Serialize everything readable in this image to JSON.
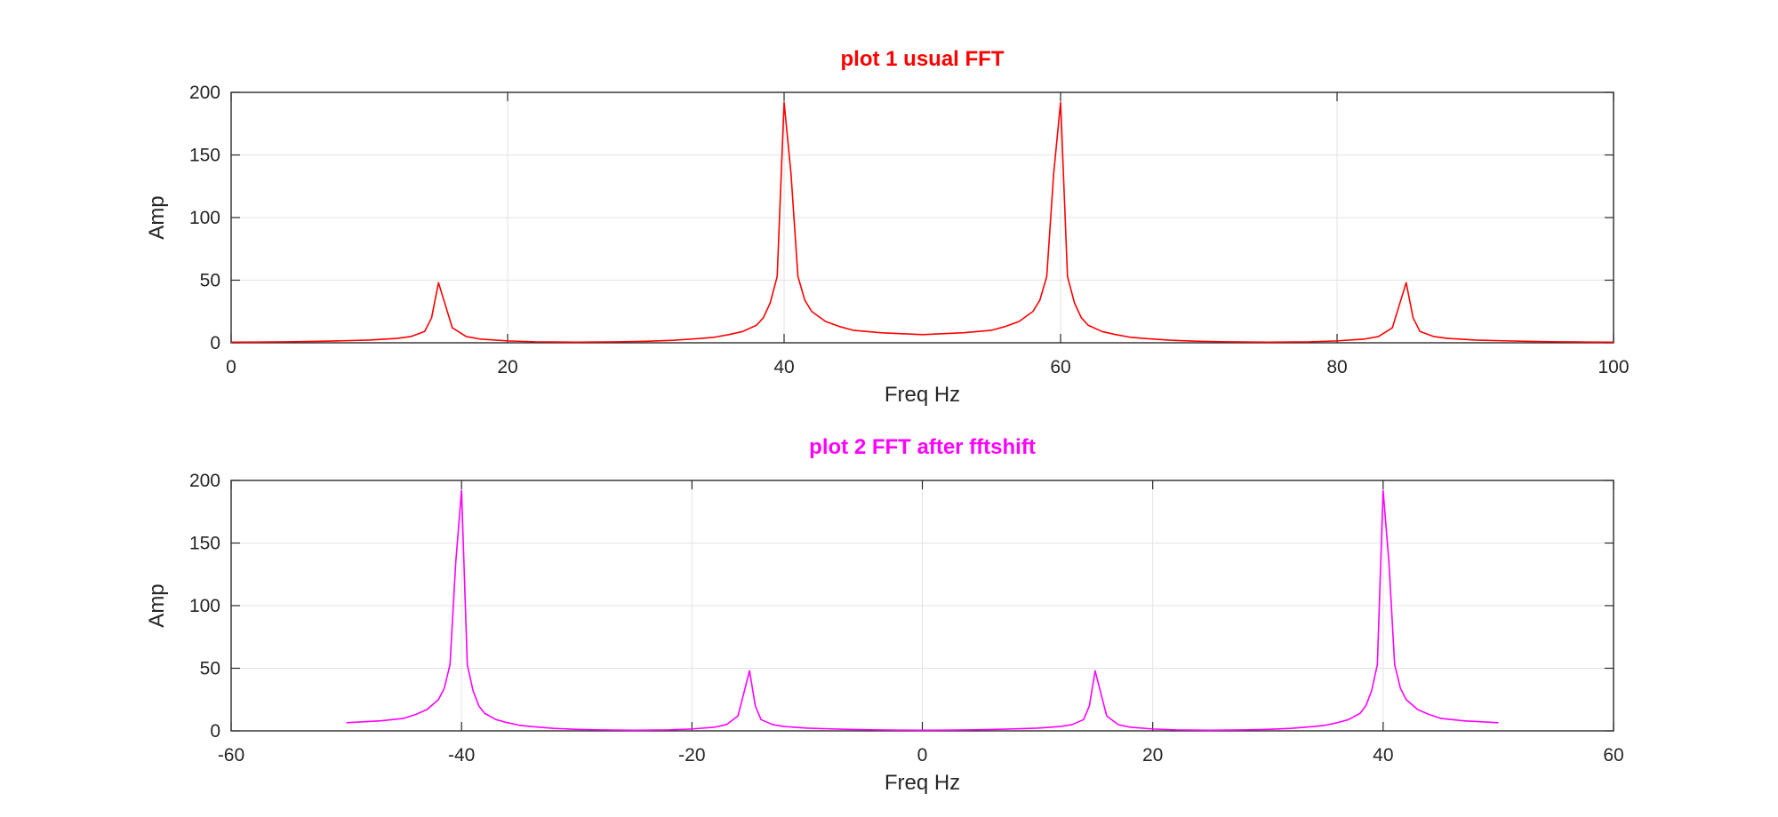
{
  "chart_data": [
    {
      "type": "line",
      "title": "plot 1 usual FFT",
      "title_color": "#ff0000",
      "xlabel": "Freq Hz",
      "ylabel": "Amp",
      "xlim": [
        0,
        100
      ],
      "ylim": [
        0,
        200
      ],
      "xticks": [
        0,
        20,
        40,
        60,
        80,
        100
      ],
      "yticks": [
        0,
        50,
        100,
        150,
        200
      ],
      "xtick_labels": [
        "0",
        "20",
        "40",
        "60",
        "80",
        "100"
      ],
      "ytick_labels": [
        "0",
        "50",
        "100",
        "150",
        "200"
      ],
      "grid": true,
      "series": [
        {
          "color": "#ff0000",
          "x": [
            0,
            2,
            4,
            6,
            8,
            10,
            12,
            13,
            14,
            14.5,
            15,
            15.5,
            16,
            17,
            18,
            20,
            22,
            25,
            28,
            30,
            32,
            34,
            35,
            36,
            37,
            38,
            38.5,
            39,
            39.5,
            40,
            40.5,
            41,
            41.5,
            42,
            43,
            44,
            45,
            47,
            50,
            53,
            55,
            56,
            57,
            58,
            58.5,
            59,
            59.5,
            60,
            60.5,
            61,
            61.5,
            62,
            63,
            64,
            65,
            66,
            68,
            70,
            72,
            75,
            78,
            80,
            82,
            83,
            84,
            84.5,
            85,
            85.5,
            86,
            87,
            88,
            90,
            92,
            94,
            96,
            98,
            100
          ],
          "y": [
            0.5,
            0.6,
            0.8,
            1.1,
            1.6,
            2.2,
            3.5,
            5,
            9,
            20,
            48,
            30,
            12,
            5,
            3,
            1.5,
            0.8,
            0.5,
            0.8,
            1.2,
            2,
            3.5,
            4.5,
            6.5,
            9,
            14,
            20,
            32,
            53,
            192,
            135,
            53,
            34,
            25,
            17,
            13,
            10,
            8,
            6.5,
            8,
            10,
            13,
            17,
            25,
            34,
            53,
            135,
            192,
            53,
            32,
            20,
            14,
            9,
            6.5,
            4.5,
            3.5,
            2,
            1.2,
            0.8,
            0.5,
            0.8,
            1.5,
            3,
            5,
            12,
            30,
            48,
            20,
            9,
            5,
            3.5,
            2.2,
            1.6,
            1.1,
            0.8,
            0.6,
            0.5
          ]
        }
      ]
    },
    {
      "type": "line",
      "title": "plot 2 FFT after fftshift",
      "title_color": "#ff00ff",
      "xlabel": "Freq Hz",
      "ylabel": "Amp",
      "xlim": [
        -60,
        60
      ],
      "ylim": [
        0,
        200
      ],
      "xticks": [
        -60,
        -40,
        -20,
        0,
        20,
        40,
        60
      ],
      "yticks": [
        0,
        50,
        100,
        150,
        200
      ],
      "xtick_labels": [
        "-60",
        "-40",
        "-20",
        "0",
        "20",
        "40",
        "60"
      ],
      "ytick_labels": [
        "0",
        "50",
        "100",
        "150",
        "200"
      ],
      "grid": true,
      "series": [
        {
          "color": "#ff00ff",
          "x": [
            -50,
            -47,
            -45,
            -44,
            -43,
            -42,
            -41.5,
            -41,
            -40.5,
            -40,
            -39.5,
            -39,
            -38.5,
            -38,
            -37,
            -36,
            -35,
            -34,
            -32,
            -30,
            -28,
            -25,
            -22,
            -20,
            -18,
            -17,
            -16,
            -15.5,
            -15,
            -14.5,
            -14,
            -13,
            -12,
            -10,
            -8,
            -6,
            -4,
            -2,
            0,
            2,
            4,
            6,
            8,
            10,
            12,
            13,
            14,
            14.5,
            15,
            15.5,
            16,
            17,
            18,
            20,
            22,
            25,
            28,
            30,
            32,
            34,
            35,
            36,
            37,
            38,
            38.5,
            39,
            39.5,
            40,
            40.5,
            41,
            41.5,
            42,
            43,
            44,
            45,
            47,
            50
          ],
          "y": [
            6.5,
            8,
            10,
            13,
            17,
            25,
            34,
            53,
            135,
            192,
            53,
            32,
            20,
            14,
            9,
            6.5,
            4.5,
            3.5,
            2,
            1.2,
            0.8,
            0.5,
            0.8,
            1.5,
            3,
            5,
            12,
            30,
            48,
            20,
            9,
            5,
            3.5,
            2.2,
            1.6,
            1.1,
            0.8,
            0.6,
            0.5,
            0.6,
            0.8,
            1.1,
            1.6,
            2.2,
            3.5,
            5,
            9,
            20,
            48,
            30,
            12,
            5,
            3,
            1.5,
            0.8,
            0.5,
            0.8,
            1.2,
            2,
            3.5,
            4.5,
            6.5,
            9,
            14,
            20,
            32,
            53,
            192,
            135,
            53,
            34,
            25,
            17,
            13,
            10,
            8,
            6.5
          ]
        }
      ]
    }
  ]
}
